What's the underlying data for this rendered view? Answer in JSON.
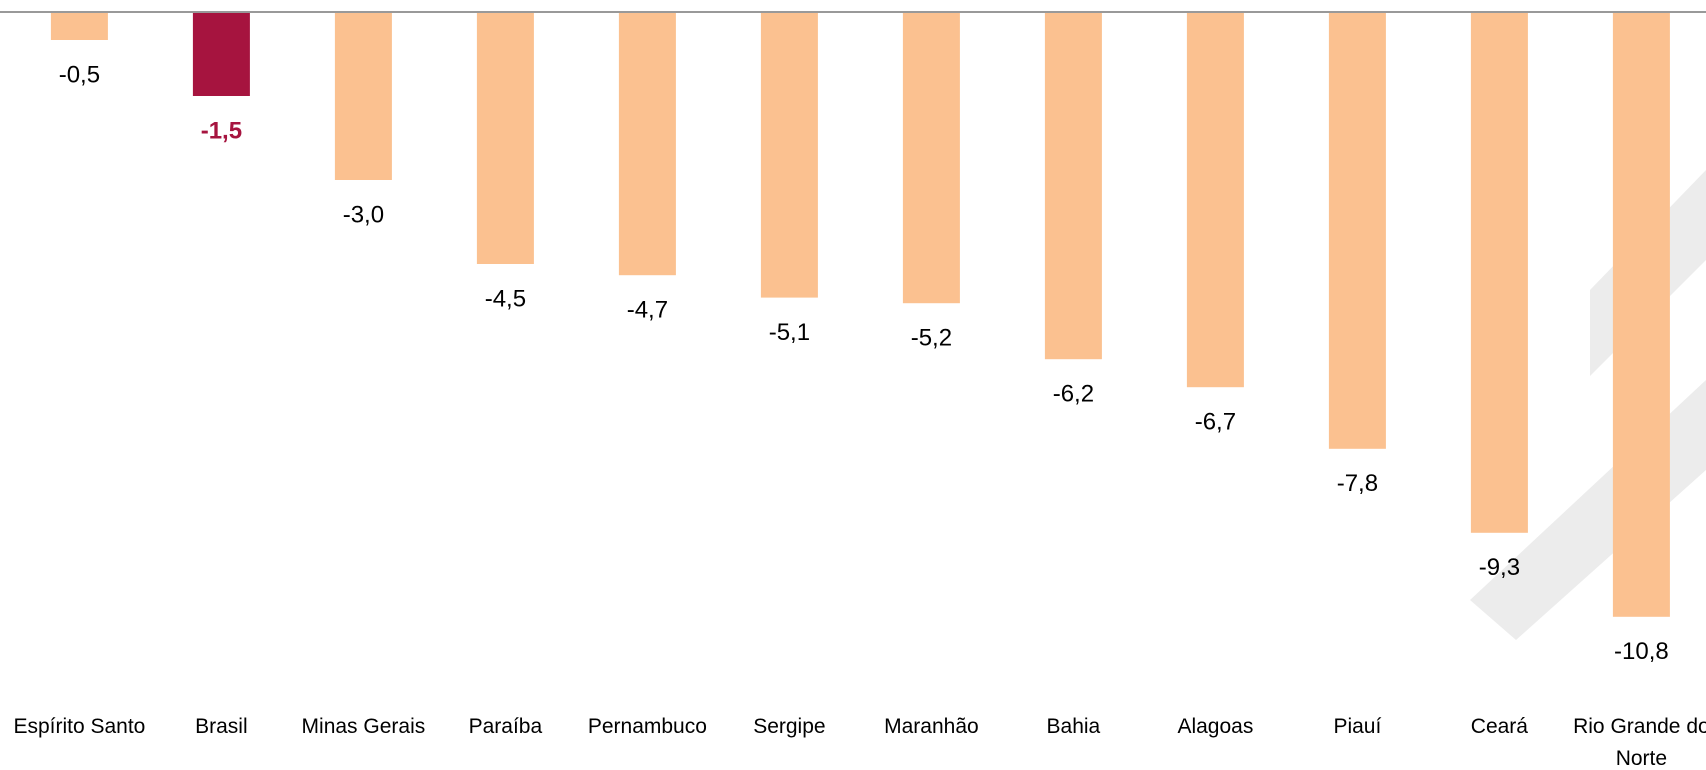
{
  "chart_data": {
    "type": "bar",
    "categories": [
      "Espírito Santo",
      "Brasil",
      "Minas Gerais",
      "Paraíba",
      "Pernambuco",
      "Sergipe",
      "Maranhão",
      "Bahia",
      "Alagoas",
      "Piauí",
      "Ceará",
      "Rio Grande do Norte"
    ],
    "values": [
      -0.5,
      -1.5,
      -3.0,
      -4.5,
      -4.7,
      -5.1,
      -5.2,
      -6.2,
      -6.7,
      -7.8,
      -9.3,
      -10.8
    ],
    "value_labels": [
      "-0,5",
      "-1,5",
      "-3,0",
      "-4,5",
      "-4,7",
      "-5,1",
      "-5,2",
      "-6,2",
      "-6,7",
      "-7,8",
      "-9,3",
      "-10,8"
    ],
    "color": "#fbc190",
    "highlight_color": "#a6143f",
    "highlight": [
      false,
      true,
      false,
      false,
      false,
      false,
      false,
      false,
      false,
      false,
      false,
      false
    ],
    "ylim": [
      -12,
      0
    ]
  }
}
